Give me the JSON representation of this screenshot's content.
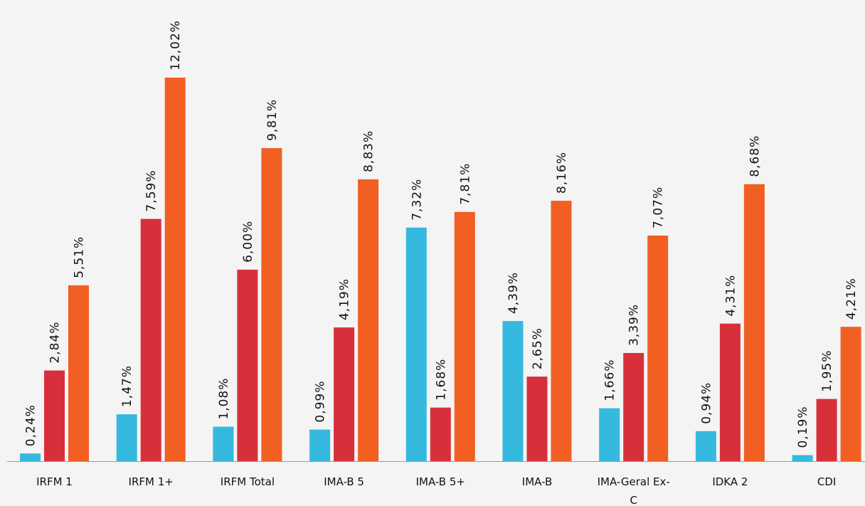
{
  "chart_data": {
    "type": "bar",
    "title": "",
    "xlabel": "",
    "ylabel": "",
    "categories": [
      [
        "IRFM 1"
      ],
      [
        "IRFM 1+"
      ],
      [
        "IRFM Total"
      ],
      [
        "IMA-B 5"
      ],
      [
        "IMA-B 5+"
      ],
      [
        "IMA-B"
      ],
      [
        "IMA-Geral Ex-",
        "C"
      ],
      [
        "IDKA 2"
      ],
      [
        "CDI"
      ]
    ],
    "series": [
      {
        "color": "#35b9df",
        "values": [
          0.24,
          1.47,
          1.08,
          0.99,
          7.32,
          4.39,
          1.66,
          0.94,
          0.19
        ],
        "labels": [
          "0,24%",
          "1,47%",
          "1,08%",
          "0,99%",
          "7,32%",
          "4,39%",
          "1,66%",
          "0,94%",
          "0,19%"
        ]
      },
      {
        "color": "#d7303a",
        "values": [
          2.84,
          7.59,
          6.0,
          4.19,
          1.68,
          2.65,
          3.39,
          4.31,
          1.95
        ],
        "labels": [
          "2,84%",
          "7,59%",
          "6,00%",
          "4,19%",
          "1,68%",
          "2,65%",
          "3,39%",
          "4,31%",
          "1,95%"
        ]
      },
      {
        "color": "#f15f22",
        "values": [
          5.51,
          12.02,
          9.81,
          8.83,
          7.81,
          8.16,
          7.07,
          8.68,
          4.21
        ],
        "labels": [
          "5,51%",
          "12,02%",
          "9,81%",
          "8,83%",
          "7,81%",
          "8,16%",
          "7,07%",
          "8,68%",
          "4,21%"
        ]
      }
    ],
    "ylim": [
      0,
      12.02
    ],
    "grid": false,
    "legend": "none",
    "axis_color": "#9a9a9a"
  }
}
